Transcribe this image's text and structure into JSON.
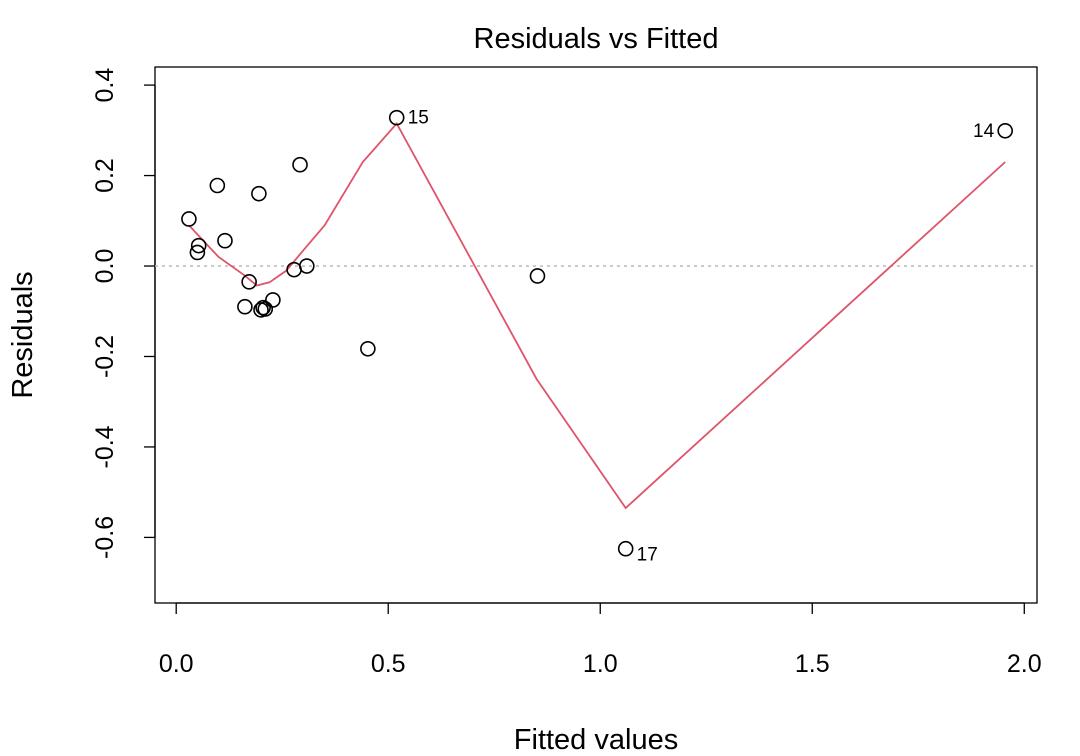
{
  "chart_data": {
    "type": "scatter",
    "title": "Residuals vs Fitted",
    "xlabel": "Fitted values",
    "ylabel": "Residuals",
    "xlim": [
      -0.05,
      2.03
    ],
    "ylim": [
      -0.745,
      0.44
    ],
    "xticks": [
      0.0,
      0.5,
      1.0,
      1.5,
      2.0
    ],
    "xtick_labels": [
      "0.0",
      "0.5",
      "1.0",
      "1.5",
      "2.0"
    ],
    "yticks": [
      -0.6,
      -0.4,
      -0.2,
      0.0,
      0.2,
      0.4
    ],
    "ytick_labels": [
      "-0.6",
      "-0.4",
      "-0.2",
      "0.0",
      "0.2",
      "0.4"
    ],
    "grid": false,
    "reference_line": {
      "y": 0,
      "style": "dotted",
      "color": "#bfbfbf"
    },
    "point_color": "#000000",
    "smooth_color": "#df536b",
    "points": [
      {
        "x": 0.03,
        "y": 0.104
      },
      {
        "x": 0.05,
        "y": 0.03
      },
      {
        "x": 0.053,
        "y": 0.045
      },
      {
        "x": 0.097,
        "y": 0.178
      },
      {
        "x": 0.115,
        "y": 0.056
      },
      {
        "x": 0.162,
        "y": -0.09
      },
      {
        "x": 0.172,
        "y": -0.035
      },
      {
        "x": 0.195,
        "y": 0.16
      },
      {
        "x": 0.2,
        "y": -0.097
      },
      {
        "x": 0.205,
        "y": -0.092
      },
      {
        "x": 0.21,
        "y": -0.095
      },
      {
        "x": 0.228,
        "y": -0.075
      },
      {
        "x": 0.278,
        "y": -0.008
      },
      {
        "x": 0.292,
        "y": 0.224
      },
      {
        "x": 0.308,
        "y": 0.0
      },
      {
        "x": 0.452,
        "y": -0.183
      },
      {
        "x": 0.52,
        "y": 0.328,
        "label": "15",
        "label_side": "right"
      },
      {
        "x": 0.852,
        "y": -0.022
      },
      {
        "x": 1.06,
        "y": -0.625,
        "label": "17",
        "label_side": "right-below"
      },
      {
        "x": 1.955,
        "y": 0.299,
        "label": "14",
        "label_side": "left"
      }
    ],
    "smooth": {
      "x": [
        0.03,
        0.05,
        0.1,
        0.16,
        0.19,
        0.22,
        0.26,
        0.3,
        0.35,
        0.44,
        0.52,
        0.85,
        1.06,
        1.955
      ],
      "y": [
        0.09,
        0.07,
        0.02,
        -0.02,
        -0.043,
        -0.036,
        -0.01,
        0.035,
        0.09,
        0.23,
        0.315,
        -0.25,
        -0.535,
        0.23
      ]
    }
  }
}
